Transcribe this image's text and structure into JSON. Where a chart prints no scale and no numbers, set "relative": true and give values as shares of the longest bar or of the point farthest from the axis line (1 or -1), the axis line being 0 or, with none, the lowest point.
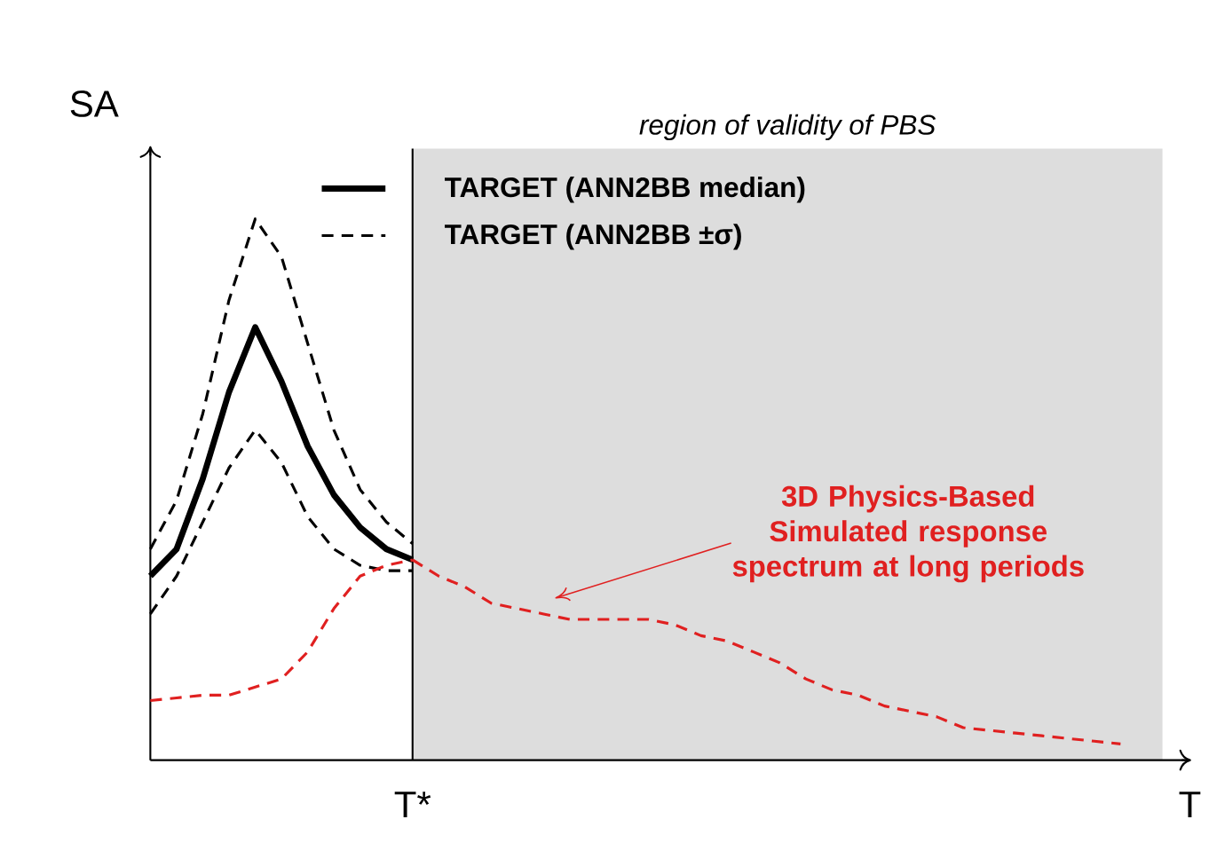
{
  "chart_data": {
    "type": "line",
    "relative": true,
    "xlabel": "T",
    "ylabel": "SA",
    "categories": [
      null,
      null,
      null,
      null,
      null,
      null,
      null,
      null,
      null,
      null,
      null,
      null,
      null,
      null,
      null,
      null,
      null,
      null,
      null,
      null,
      null,
      null,
      null,
      null,
      null,
      null,
      null,
      null,
      null,
      null,
      null,
      null,
      null,
      null,
      null,
      null,
      null,
      null,
      null
    ],
    "legend": "top",
    "series": [
      {
        "name": "TARGET (ANN2BB median)",
        "color": "#000000",
        "line_style": "solid",
        "values": [
          0.34,
          0.39,
          0.52,
          0.68,
          0.8,
          0.7,
          0.58,
          0.49,
          0.43,
          0.39,
          0.37,
          null,
          null,
          null,
          null,
          null,
          null,
          null,
          null,
          null,
          null,
          null,
          null,
          null,
          null,
          null,
          null,
          null,
          null,
          null,
          null,
          null,
          null,
          null,
          null,
          null,
          null,
          null,
          null
        ]
      },
      {
        "name": "TARGET (ANN2BB ±σ)",
        "color": "#000000",
        "line_style": "dashed",
        "values": [
          0.39,
          0.48,
          0.64,
          0.85,
          1,
          0.93,
          0.77,
          0.61,
          0.5,
          0.44,
          0.4,
          null,
          null,
          null,
          null,
          null,
          null,
          null,
          null,
          null,
          null,
          null,
          null,
          null,
          null,
          null,
          null,
          null,
          null,
          null,
          null,
          null,
          null,
          null,
          null,
          null,
          null,
          null,
          null
        ]
      },
      {
        "color": "#000000",
        "line_style": "dashed",
        "values": [
          0.27,
          0.34,
          0.44,
          0.54,
          0.61,
          0.55,
          0.45,
          0.39,
          0.36,
          0.35,
          0.35,
          null,
          null,
          null,
          null,
          null,
          null,
          null,
          null,
          null,
          null,
          null,
          null,
          null,
          null,
          null,
          null,
          null,
          null,
          null,
          null,
          null,
          null,
          null,
          null,
          null,
          null,
          null,
          null
        ]
      },
      {
        "color": "#e02020",
        "line_style": "dashed",
        "values": [
          0.11,
          0.115,
          0.12,
          0.12,
          0.135,
          0.15,
          0.2,
          0.28,
          0.34,
          0.36,
          0.37,
          null,
          null,
          null,
          null,
          null,
          null,
          null,
          null,
          null,
          null,
          null,
          null,
          null,
          null,
          null,
          null,
          null,
          null,
          null,
          null,
          null,
          null,
          null,
          null,
          null,
          null,
          null,
          null
        ]
      },
      {
        "color": "#e02020",
        "line_style": "dashed",
        "values": [
          null,
          null,
          null,
          null,
          null,
          null,
          null,
          null,
          null,
          null,
          0.37,
          0.34,
          0.32,
          0.29,
          0.28,
          0.27,
          0.26,
          0.26,
          0.26,
          0.26,
          0.25,
          0.23,
          0.22,
          0.2,
          0.18,
          0.15,
          0.13,
          0.12,
          0.1,
          0.09,
          0.08,
          0.06,
          0.055,
          0.05,
          0.045,
          0.04,
          0.035,
          0.03,
          null
        ]
      }
    ],
    "annotations": [
      "region of validity of PBS",
      "T*",
      "3D Physics-Based Simulated response spectrum at long periods"
    ]
  }
}
